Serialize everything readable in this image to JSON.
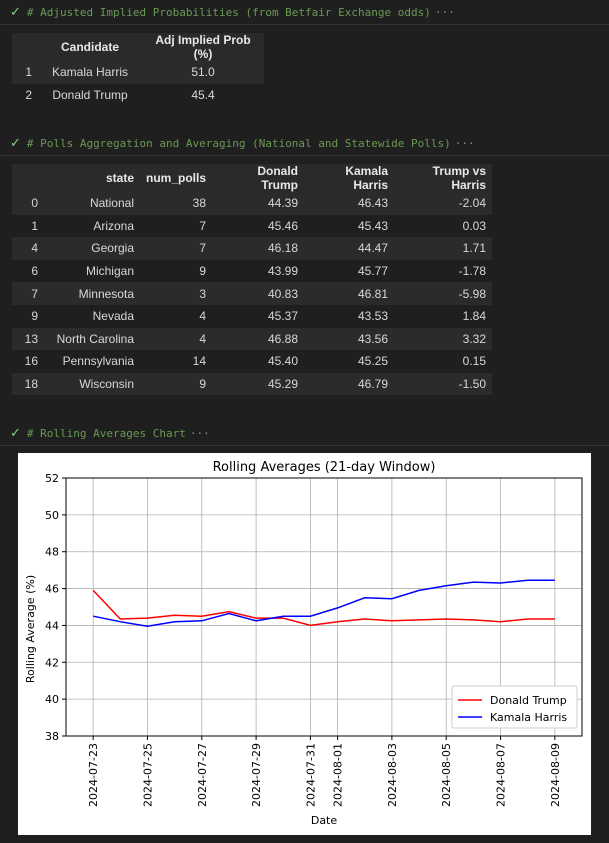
{
  "cells": [
    {
      "header": "# Adjusted Implied Probabilities (from Betfair Exchange odds)",
      "ellipsis": "···"
    },
    {
      "header": "# Polls Aggregation and Averaging (National and Statewide Polls)",
      "ellipsis": "···"
    },
    {
      "header": "# Rolling Averages Chart",
      "ellipsis": "···"
    }
  ],
  "prob_table": {
    "columns": [
      "",
      "Candidate",
      "Adj Implied Prob (%)"
    ],
    "rows": [
      [
        "1",
        "Kamala Harris",
        "51.0"
      ],
      [
        "2",
        "Donald Trump",
        "45.4"
      ]
    ]
  },
  "polls_table": {
    "columns": [
      "",
      "state",
      "num_polls",
      "Donald Trump",
      "Kamala Harris",
      "Trump vs Harris"
    ],
    "rows": [
      [
        "0",
        "National",
        "38",
        "44.39",
        "46.43",
        "-2.04"
      ],
      [
        "1",
        "Arizona",
        "7",
        "45.46",
        "45.43",
        "0.03"
      ],
      [
        "4",
        "Georgia",
        "7",
        "46.18",
        "44.47",
        "1.71"
      ],
      [
        "6",
        "Michigan",
        "9",
        "43.99",
        "45.77",
        "-1.78"
      ],
      [
        "7",
        "Minnesota",
        "3",
        "40.83",
        "46.81",
        "-5.98"
      ],
      [
        "9",
        "Nevada",
        "4",
        "45.37",
        "43.53",
        "1.84"
      ],
      [
        "13",
        "North Carolina",
        "4",
        "46.88",
        "43.56",
        "3.32"
      ],
      [
        "16",
        "Pennsylvania",
        "14",
        "45.40",
        "45.25",
        "0.15"
      ],
      [
        "18",
        "Wisconsin",
        "9",
        "45.29",
        "46.79",
        "-1.50"
      ]
    ]
  },
  "chart_data": {
    "type": "line",
    "title": "Rolling Averages (21-day Window)",
    "xlabel": "Date",
    "ylabel": "Rolling Average (%)",
    "ylim": [
      38,
      52
    ],
    "yticks": [
      38,
      40,
      42,
      44,
      46,
      48,
      50,
      52
    ],
    "xlim": [
      "2024-07-22",
      "2024-08-10"
    ],
    "xticks": [
      "2024-07-23",
      "2024-07-25",
      "2024-07-27",
      "2024-07-29",
      "2024-07-31",
      "2024-08-01",
      "2024-08-03",
      "2024-08-05",
      "2024-08-07",
      "2024-08-09"
    ],
    "grid": true,
    "legend_position": "lower right",
    "x": [
      "2024-07-23",
      "2024-07-24",
      "2024-07-25",
      "2024-07-26",
      "2024-07-27",
      "2024-07-28",
      "2024-07-29",
      "2024-07-30",
      "2024-07-31",
      "2024-08-01",
      "2024-08-02",
      "2024-08-03",
      "2024-08-04",
      "2024-08-05",
      "2024-08-06",
      "2024-08-07",
      "2024-08-08",
      "2024-08-09"
    ],
    "series": [
      {
        "name": "Donald Trump",
        "color": "#ff0000",
        "values": [
          45.9,
          44.35,
          44.4,
          44.55,
          44.5,
          44.75,
          44.4,
          44.4,
          44.0,
          44.2,
          44.35,
          44.25,
          44.3,
          44.35,
          44.3,
          44.2,
          44.35,
          44.35
        ]
      },
      {
        "name": "Kamala Harris",
        "color": "#0000ff",
        "values": [
          44.5,
          44.2,
          43.95,
          44.2,
          44.25,
          44.65,
          44.25,
          44.5,
          44.5,
          44.95,
          45.5,
          45.45,
          45.9,
          46.15,
          46.35,
          46.3,
          46.45,
          46.45
        ]
      }
    ]
  }
}
